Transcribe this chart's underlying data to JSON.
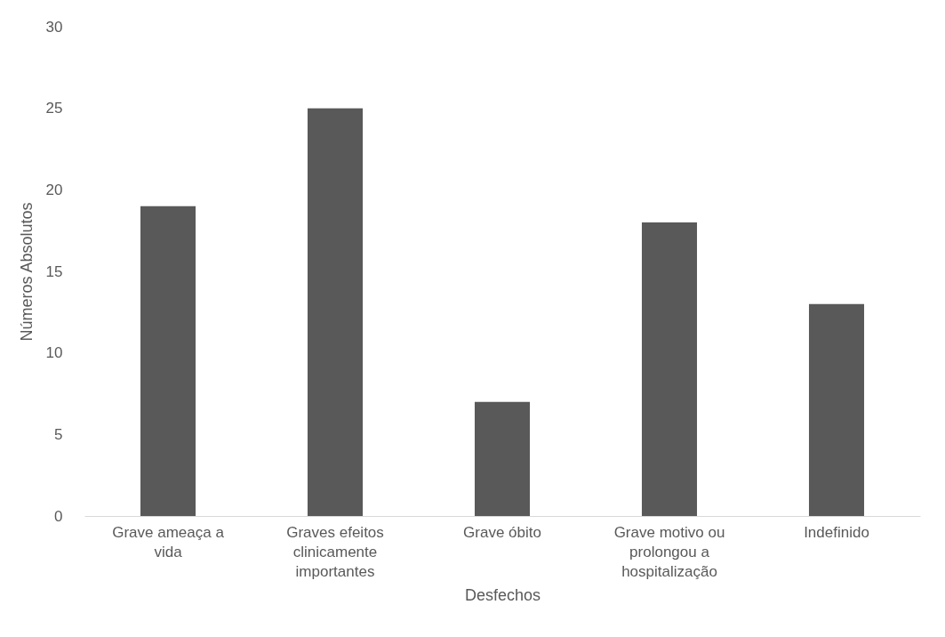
{
  "chart_data": {
    "type": "bar",
    "xlabel": "Desfechos",
    "ylabel": "Números Absolutos",
    "categories": [
      "Grave ameaça a vida",
      "Graves efeitos clinicamente importantes",
      "Grave óbito",
      "Grave motivo ou prolongou a hospitalização",
      "Indefinido"
    ],
    "values": [
      19,
      25,
      7,
      18,
      13
    ],
    "color": "#595959",
    "ylim": [
      0,
      30
    ],
    "yticks": [
      0,
      5,
      10,
      15,
      20,
      25,
      30
    ],
    "grid": false
  }
}
